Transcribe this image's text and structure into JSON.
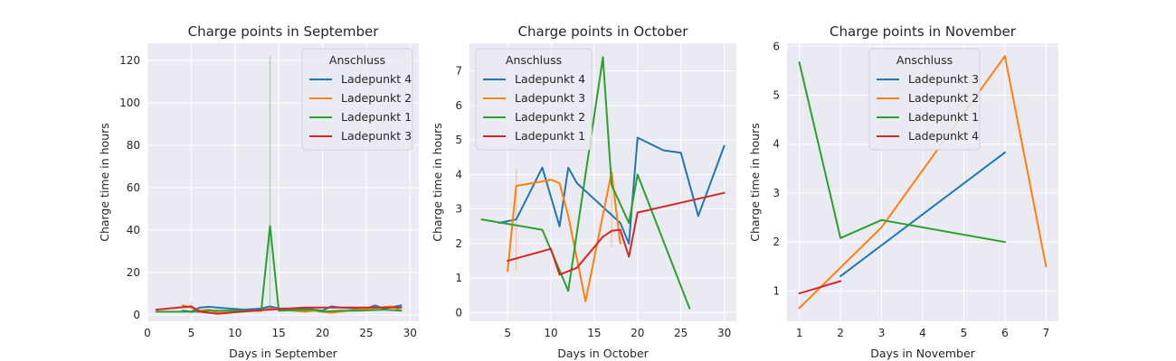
{
  "chart_data": [
    {
      "type": "line",
      "title": "Charge points in September",
      "xlabel": "Days in September",
      "ylabel": "Charge time in hours",
      "xlim": [
        0,
        31
      ],
      "ylim": [
        -3,
        128
      ],
      "xticks": [
        0,
        5,
        10,
        15,
        20,
        25,
        30
      ],
      "yticks": [
        0,
        20,
        40,
        60,
        80,
        100,
        120
      ],
      "grid": true,
      "legend": {
        "title": "Anschluss",
        "placement": "top-right"
      },
      "series": [
        {
          "name": "Ladepunkt 4",
          "color": "#1f77b4",
          "x": [
            4,
            5,
            6,
            7,
            11,
            13,
            14,
            15,
            18,
            20,
            21,
            22,
            24,
            25,
            26,
            27,
            29
          ],
          "y": [
            2.0,
            1.5,
            3.5,
            3.8,
            2.5,
            3.0,
            4.0,
            3.0,
            3.0,
            2.0,
            4.0,
            3.5,
            3.0,
            3.0,
            4.5,
            3.0,
            4.5
          ]
        },
        {
          "name": "Ladepunkt 2",
          "color": "#ff7f0e",
          "x": [
            4,
            5,
            6,
            7,
            8,
            13,
            14,
            18,
            19,
            21,
            22,
            25,
            28,
            29
          ],
          "y": [
            4.5,
            3.5,
            2.0,
            2.5,
            1.0,
            2.0,
            3.0,
            1.5,
            2.0,
            1.0,
            1.5,
            3.0,
            4.0,
            2.0
          ]
        },
        {
          "name": "Ladepunkt 1",
          "color": "#2ca02c",
          "x": [
            1,
            6,
            7,
            13,
            14,
            15,
            19,
            20,
            22,
            24,
            27,
            29
          ],
          "y": [
            1.5,
            1.5,
            2.0,
            2.0,
            42.0,
            2.0,
            2.5,
            1.5,
            2.0,
            2.0,
            2.5,
            2.0
          ]
        },
        {
          "name": "Ladepunkt 3",
          "color": "#d62728",
          "x": [
            1,
            5,
            6,
            8,
            12,
            14,
            18,
            22,
            26,
            29
          ],
          "y": [
            2.5,
            4.0,
            1.5,
            0.5,
            2.0,
            2.5,
            3.5,
            3.5,
            3.5,
            3.5
          ]
        }
      ],
      "error_bars": [
        {
          "series": "Ladepunkt 1",
          "x": 14,
          "y_low": 5,
          "y_high": 122
        },
        {
          "series": "Ladepunkt 2",
          "x": 5,
          "y_low": 0.5,
          "y_high": 6
        }
      ]
    },
    {
      "type": "line",
      "title": "Charge points in October",
      "xlabel": "Days in October",
      "ylabel": "Charge time in hours",
      "xlim": [
        0.6,
        31.4
      ],
      "ylim": [
        -0.25,
        7.8
      ],
      "xticks": [
        5,
        10,
        15,
        20,
        25,
        30
      ],
      "yticks": [
        0,
        1,
        2,
        3,
        4,
        5,
        6,
        7
      ],
      "grid": true,
      "legend": {
        "title": "Anschluss",
        "placement": "top-left"
      },
      "series": [
        {
          "name": "Ladepunkt 4",
          "color": "#1f77b4",
          "x": [
            4,
            6,
            9,
            11,
            12,
            13,
            18,
            19,
            20,
            23,
            25,
            27,
            30
          ],
          "y": [
            2.6,
            2.7,
            4.2,
            2.5,
            4.2,
            3.75,
            2.6,
            2.0,
            5.07,
            4.7,
            4.63,
            2.8,
            4.83
          ]
        },
        {
          "name": "Ladepunkt 3",
          "color": "#ff7f0e",
          "x": [
            5,
            6,
            9,
            10,
            11,
            12,
            14,
            17,
            18
          ],
          "y": [
            1.2,
            3.67,
            3.8,
            3.85,
            3.75,
            2.8,
            0.33,
            4.07,
            2.0
          ]
        },
        {
          "name": "Ladepunkt 2",
          "color": "#2ca02c",
          "x": [
            2,
            9,
            12,
            16,
            17,
            19,
            20,
            26
          ],
          "y": [
            2.7,
            2.4,
            0.63,
            7.4,
            3.7,
            2.6,
            4.0,
            0.12
          ]
        },
        {
          "name": "Ladepunkt 1",
          "color": "#d62728",
          "x": [
            5,
            10,
            11,
            13,
            16,
            17,
            18,
            19,
            20,
            30
          ],
          "y": [
            1.5,
            1.85,
            1.1,
            1.3,
            2.2,
            2.37,
            2.4,
            1.62,
            2.9,
            3.47
          ]
        }
      ],
      "error_bars": [
        {
          "series": "Ladepunkt 3",
          "x": 6,
          "y_low": 1.2,
          "y_high": 4.2
        },
        {
          "series": "Ladepunkt 3",
          "x": 17,
          "y_low": 1.9,
          "y_high": 4.2
        }
      ]
    },
    {
      "type": "line",
      "title": "Charge points in November",
      "xlabel": "Days in November",
      "ylabel": "Charge time in hours",
      "xlim": [
        0.7,
        7.3
      ],
      "ylim": [
        0.38,
        6.06
      ],
      "xticks": [
        1,
        2,
        3,
        4,
        5,
        6,
        7
      ],
      "yticks": [
        1,
        2,
        3,
        4,
        5,
        6
      ],
      "grid": true,
      "legend": {
        "title": "Anschluss",
        "placement": "top-center"
      },
      "series": [
        {
          "name": "Ladepunkt 3",
          "color": "#1f77b4",
          "x": [
            2,
            6
          ],
          "y": [
            1.3,
            3.83
          ]
        },
        {
          "name": "Ladepunkt 2",
          "color": "#ff7f0e",
          "x": [
            1,
            3,
            6,
            7
          ],
          "y": [
            0.65,
            2.3,
            5.8,
            1.5
          ]
        },
        {
          "name": "Ladepunkt 1",
          "color": "#2ca02c",
          "x": [
            1,
            2,
            3,
            6
          ],
          "y": [
            5.67,
            2.08,
            2.45,
            2.0
          ]
        },
        {
          "name": "Ladepunkt 4",
          "color": "#d62728",
          "x": [
            1,
            2
          ],
          "y": [
            0.95,
            1.2
          ]
        }
      ],
      "error_bars": []
    }
  ]
}
